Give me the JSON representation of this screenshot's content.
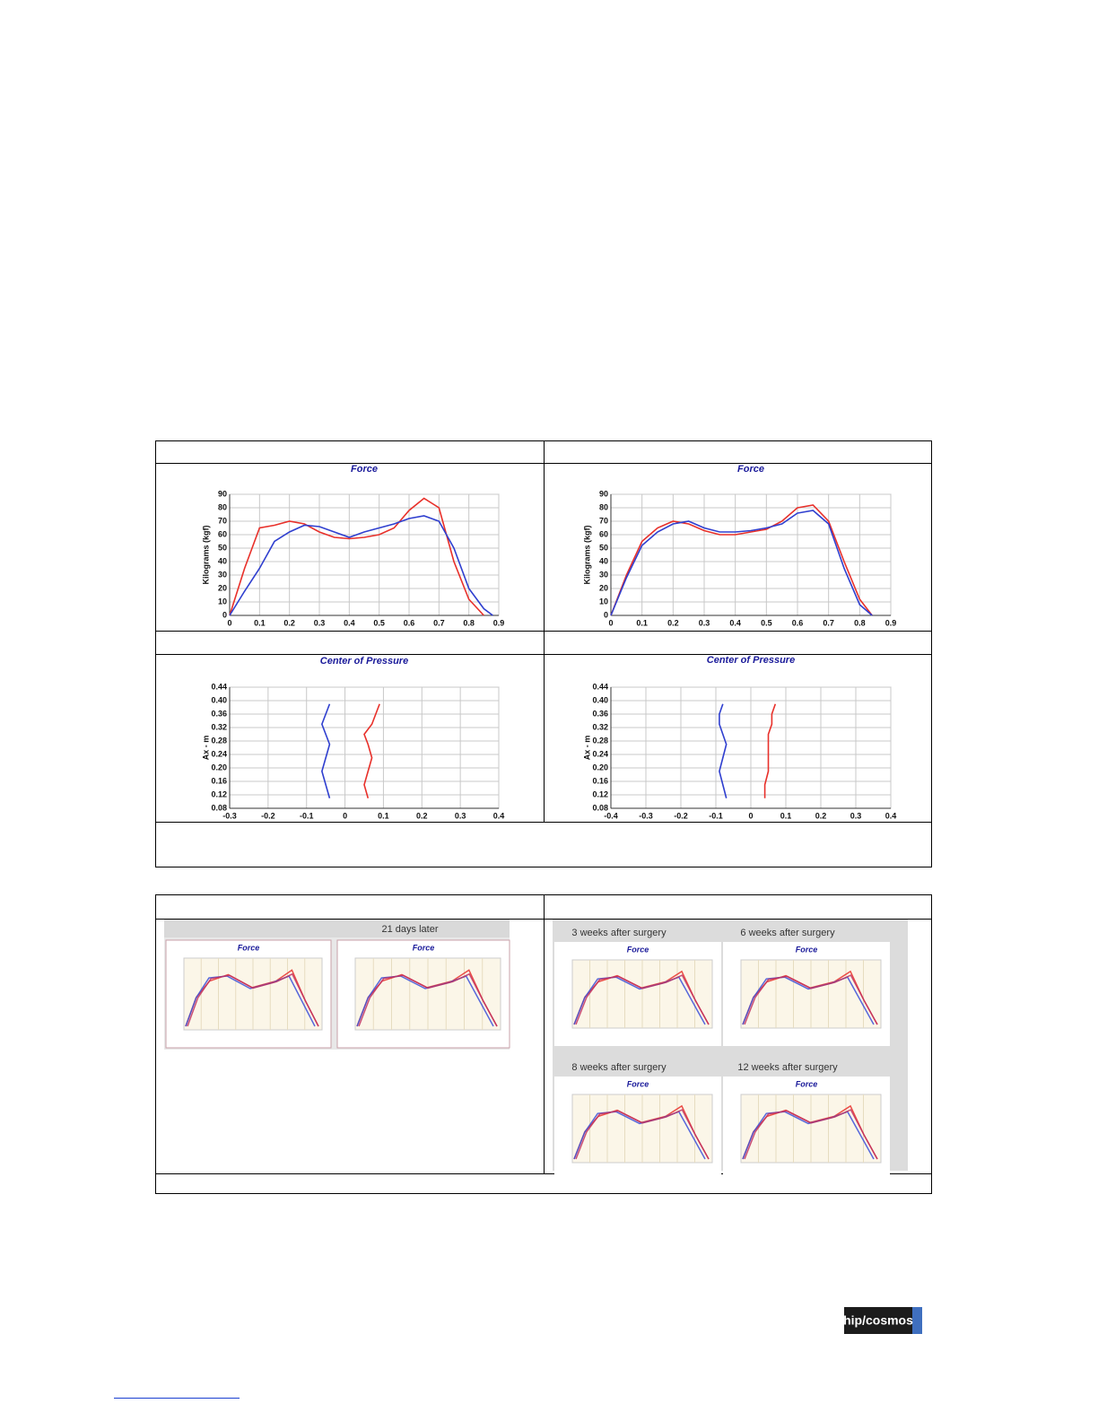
{
  "chart_data": [
    {
      "type": "line",
      "title": "Force",
      "ylabel": "Kilograms (kgf)",
      "xlim": [
        0,
        0.9
      ],
      "ylim": [
        0,
        90
      ],
      "xticks": [
        0,
        0.1,
        0.2,
        0.3,
        0.4,
        0.5,
        0.6,
        0.7,
        0.8,
        0.9
      ],
      "yticks": [
        0,
        10,
        20,
        30,
        40,
        50,
        60,
        70,
        80,
        90
      ],
      "grid": true,
      "x": [
        0,
        0.05,
        0.1,
        0.15,
        0.2,
        0.25,
        0.3,
        0.35,
        0.4,
        0.45,
        0.5,
        0.55,
        0.6,
        0.65,
        0.7,
        0.75,
        0.8,
        0.85,
        0.88
      ],
      "series": [
        {
          "color": "#e8302a",
          "values": [
            0,
            35,
            65,
            67,
            70,
            68,
            62,
            58,
            57,
            58,
            60,
            65,
            78,
            87,
            80,
            40,
            12,
            0,
            null
          ]
        },
        {
          "color": "#2f3fcf",
          "values": [
            0,
            18,
            35,
            55,
            62,
            67,
            66,
            62,
            58,
            62,
            65,
            68,
            72,
            74,
            70,
            50,
            20,
            5,
            0
          ]
        }
      ]
    },
    {
      "type": "line",
      "title": "Force",
      "ylabel": "Kilograms (kgf)",
      "xlim": [
        0,
        0.9
      ],
      "ylim": [
        0,
        90
      ],
      "xticks": [
        0,
        0.1,
        0.2,
        0.3,
        0.4,
        0.5,
        0.6,
        0.7,
        0.8,
        0.9
      ],
      "yticks": [
        0,
        10,
        20,
        30,
        40,
        50,
        60,
        70,
        80,
        90
      ],
      "grid": true,
      "x": [
        0,
        0.05,
        0.1,
        0.15,
        0.2,
        0.25,
        0.3,
        0.35,
        0.4,
        0.45,
        0.5,
        0.55,
        0.6,
        0.65,
        0.7,
        0.75,
        0.8,
        0.84
      ],
      "series": [
        {
          "color": "#e8302a",
          "values": [
            0,
            30,
            55,
            65,
            70,
            68,
            63,
            60,
            60,
            62,
            64,
            70,
            80,
            82,
            70,
            40,
            12,
            0
          ]
        },
        {
          "color": "#2f3fcf",
          "values": [
            0,
            28,
            52,
            62,
            68,
            70,
            65,
            62,
            62,
            63,
            65,
            68,
            76,
            78,
            68,
            35,
            8,
            0
          ]
        }
      ]
    },
    {
      "type": "line",
      "title": "Center of Pressure",
      "ylabel": "Ax - m",
      "xlim": [
        -0.3,
        0.4
      ],
      "ylim": [
        0.08,
        0.44
      ],
      "xticks": [
        -0.3,
        -0.2,
        -0.1,
        0,
        0.1,
        0.2,
        0.3,
        0.4
      ],
      "yticks": [
        0.08,
        0.12,
        0.16,
        {
          "value": 0.2,
          "label": "0.20"
        },
        0.24,
        0.28,
        0.32,
        0.36,
        {
          "value": 0.4,
          "label": "0.40"
        },
        0.44
      ],
      "grid": true,
      "series": [
        {
          "color": "#2f3fcf",
          "x": [
            -0.04,
            -0.05,
            -0.06,
            -0.05,
            -0.04,
            -0.05,
            -0.06,
            -0.05,
            -0.04
          ],
          "values": [
            0.11,
            0.15,
            0.19,
            0.23,
            0.27,
            0.3,
            0.33,
            0.36,
            0.39
          ]
        },
        {
          "color": "#e8302a",
          "x": [
            0.06,
            0.05,
            0.06,
            0.07,
            0.06,
            0.05,
            0.07,
            0.08,
            0.09
          ],
          "values": [
            0.11,
            0.15,
            0.19,
            0.23,
            0.27,
            0.3,
            0.33,
            0.36,
            0.39
          ]
        }
      ]
    },
    {
      "type": "line",
      "title": "Center of Pressure",
      "ylabel": "Ax - m",
      "xlim": [
        -0.4,
        0.4
      ],
      "ylim": [
        0.08,
        0.44
      ],
      "xticks": [
        -0.4,
        -0.3,
        -0.2,
        -0.1,
        0,
        0.1,
        0.2,
        0.3,
        0.4
      ],
      "yticks": [
        0.08,
        0.12,
        0.16,
        {
          "value": 0.2,
          "label": "0.20"
        },
        0.24,
        0.28,
        0.32,
        0.36,
        {
          "value": 0.4,
          "label": "0.40"
        },
        0.44
      ],
      "grid": true,
      "series": [
        {
          "color": "#2f3fcf",
          "x": [
            -0.07,
            -0.08,
            -0.09,
            -0.08,
            -0.07,
            -0.08,
            -0.09,
            -0.09,
            -0.08
          ],
          "values": [
            0.11,
            0.15,
            0.19,
            0.23,
            0.27,
            0.3,
            0.33,
            0.36,
            0.39
          ]
        },
        {
          "color": "#e8302a",
          "x": [
            0.04,
            0.04,
            0.05,
            0.05,
            0.05,
            0.05,
            0.06,
            0.06,
            0.07
          ],
          "values": [
            0.11,
            0.15,
            0.19,
            0.23,
            0.27,
            0.3,
            0.33,
            0.36,
            0.39
          ]
        }
      ]
    }
  ],
  "table2": {
    "left_caption": "21 days later",
    "left_panels": [
      "Force",
      "Force"
    ],
    "right_panels": [
      {
        "caption": "3 weeks after surgery",
        "title": "Force"
      },
      {
        "caption": "6 weeks after surgery",
        "title": "Force"
      },
      {
        "caption": "8 weeks after surgery",
        "title": "Force"
      },
      {
        "caption": "12 weeks after surgery",
        "title": "Force"
      }
    ]
  },
  "logo": "hip/cosmos"
}
